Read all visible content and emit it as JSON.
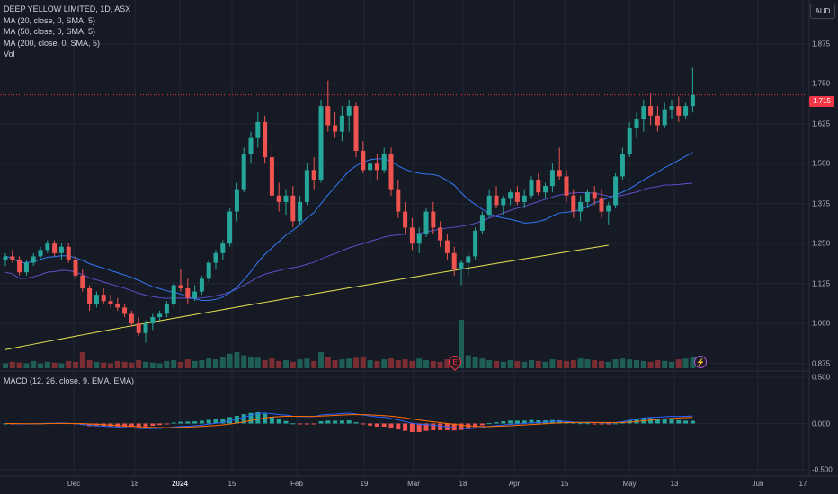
{
  "title": "DEEP YELLOW LIMITED, 1D, ASX",
  "currency": "AUD",
  "legend": {
    "ma20": "MA (20, close, 0, SMA, 5)",
    "ma50": "MA (50, close, 0, SMA, 5)",
    "ma200": "MA (200, close, 0, SMA, 5)",
    "vol": "Vol"
  },
  "macd_label": "MACD (12, 26, close, 9, EMA, EMA)",
  "last_price": "1.715",
  "event_icons": {
    "earnings": "E",
    "dividend": "⚡"
  },
  "colors": {
    "up": "#26a69a",
    "down": "#ef5350",
    "vol_up": "#1f5e57",
    "vol_down": "#7a2e33",
    "ma20": "#3179f5",
    "ma50": "#5b4fc9",
    "ma200": "#e8e454",
    "macd": "#2962ff",
    "signal": "#ff6d00",
    "background": "#161a25",
    "grid": "#232632"
  },
  "chart_data": {
    "type": "candlestick",
    "price_axis": {
      "ticks": [
        "1.875",
        "1.750",
        "1.625",
        "1.500",
        "1.375",
        "1.250",
        "1.125",
        "1.000",
        "0.875"
      ],
      "range": [
        0.86,
        1.95
      ]
    },
    "macd_axis": {
      "ticks": [
        "0.500",
        "0.000",
        "-0.500"
      ],
      "range": [
        -0.55,
        0.55
      ]
    },
    "time_axis": [
      {
        "label": "Dec",
        "bold": false
      },
      {
        "label": "18",
        "bold": false
      },
      {
        "label": "2024",
        "bold": true
      },
      {
        "label": "15",
        "bold": false
      },
      {
        "label": "Feb",
        "bold": false
      },
      {
        "label": "19",
        "bold": false
      },
      {
        "label": "Mar",
        "bold": false
      },
      {
        "label": "18",
        "bold": false
      },
      {
        "label": "Apr",
        "bold": false
      },
      {
        "label": "15",
        "bold": false
      },
      {
        "label": "May",
        "bold": false
      },
      {
        "label": "13",
        "bold": false
      },
      {
        "label": "Jun",
        "bold": false
      },
      {
        "label": "17",
        "bold": false
      }
    ],
    "ohlc": [
      [
        1.2,
        1.22,
        1.18,
        1.21
      ],
      [
        1.21,
        1.23,
        1.19,
        1.2
      ],
      [
        1.2,
        1.21,
        1.15,
        1.16
      ],
      [
        1.16,
        1.2,
        1.15,
        1.19
      ],
      [
        1.19,
        1.22,
        1.18,
        1.21
      ],
      [
        1.21,
        1.24,
        1.2,
        1.23
      ],
      [
        1.23,
        1.26,
        1.22,
        1.25
      ],
      [
        1.25,
        1.26,
        1.21,
        1.22
      ],
      [
        1.22,
        1.25,
        1.2,
        1.24
      ],
      [
        1.24,
        1.25,
        1.19,
        1.2
      ],
      [
        1.2,
        1.21,
        1.14,
        1.15
      ],
      [
        1.15,
        1.17,
        1.1,
        1.11
      ],
      [
        1.11,
        1.12,
        1.04,
        1.06
      ],
      [
        1.06,
        1.1,
        1.05,
        1.09
      ],
      [
        1.09,
        1.11,
        1.06,
        1.07
      ],
      [
        1.07,
        1.09,
        1.05,
        1.06
      ],
      [
        1.06,
        1.08,
        1.04,
        1.05
      ],
      [
        1.05,
        1.06,
        1.02,
        1.03
      ],
      [
        1.03,
        1.04,
        0.99,
        1.0
      ],
      [
        1.0,
        1.02,
        0.96,
        0.97
      ],
      [
        0.97,
        1.01,
        0.94,
        1.0
      ],
      [
        1.0,
        1.03,
        0.98,
        1.02
      ],
      [
        1.02,
        1.04,
        1.01,
        1.03
      ],
      [
        1.03,
        1.07,
        1.02,
        1.06
      ],
      [
        1.06,
        1.13,
        1.05,
        1.12
      ],
      [
        1.12,
        1.17,
        1.1,
        1.11
      ],
      [
        1.11,
        1.14,
        1.06,
        1.08
      ],
      [
        1.08,
        1.12,
        1.07,
        1.1
      ],
      [
        1.1,
        1.15,
        1.09,
        1.14
      ],
      [
        1.14,
        1.2,
        1.13,
        1.19
      ],
      [
        1.19,
        1.23,
        1.17,
        1.22
      ],
      [
        1.22,
        1.26,
        1.2,
        1.25
      ],
      [
        1.25,
        1.36,
        1.24,
        1.35
      ],
      [
        1.35,
        1.44,
        1.32,
        1.42
      ],
      [
        1.42,
        1.55,
        1.41,
        1.53
      ],
      [
        1.53,
        1.6,
        1.5,
        1.58
      ],
      [
        1.58,
        1.66,
        1.55,
        1.63
      ],
      [
        1.63,
        1.65,
        1.5,
        1.52
      ],
      [
        1.52,
        1.56,
        1.38,
        1.4
      ],
      [
        1.4,
        1.44,
        1.35,
        1.38
      ],
      [
        1.38,
        1.42,
        1.34,
        1.4
      ],
      [
        1.4,
        1.43,
        1.3,
        1.32
      ],
      [
        1.32,
        1.4,
        1.31,
        1.38
      ],
      [
        1.38,
        1.5,
        1.37,
        1.48
      ],
      [
        1.48,
        1.52,
        1.42,
        1.45
      ],
      [
        1.45,
        1.7,
        1.44,
        1.68
      ],
      [
        1.68,
        1.76,
        1.6,
        1.62
      ],
      [
        1.62,
        1.66,
        1.58,
        1.6
      ],
      [
        1.6,
        1.68,
        1.57,
        1.65
      ],
      [
        1.65,
        1.7,
        1.6,
        1.68
      ],
      [
        1.68,
        1.69,
        1.52,
        1.54
      ],
      [
        1.54,
        1.57,
        1.47,
        1.48
      ],
      [
        1.48,
        1.52,
        1.44,
        1.5
      ],
      [
        1.5,
        1.53,
        1.45,
        1.48
      ],
      [
        1.48,
        1.55,
        1.47,
        1.53
      ],
      [
        1.53,
        1.55,
        1.4,
        1.42
      ],
      [
        1.42,
        1.45,
        1.33,
        1.35
      ],
      [
        1.35,
        1.38,
        1.28,
        1.3
      ],
      [
        1.3,
        1.33,
        1.23,
        1.25
      ],
      [
        1.25,
        1.3,
        1.22,
        1.28
      ],
      [
        1.28,
        1.36,
        1.27,
        1.35
      ],
      [
        1.35,
        1.38,
        1.28,
        1.3
      ],
      [
        1.3,
        1.32,
        1.24,
        1.26
      ],
      [
        1.26,
        1.28,
        1.2,
        1.22
      ],
      [
        1.22,
        1.24,
        1.15,
        1.17
      ],
      [
        1.17,
        1.2,
        1.12,
        1.19
      ],
      [
        1.19,
        1.22,
        1.15,
        1.21
      ],
      [
        1.21,
        1.3,
        1.2,
        1.29
      ],
      [
        1.29,
        1.35,
        1.28,
        1.34
      ],
      [
        1.34,
        1.42,
        1.33,
        1.4
      ],
      [
        1.4,
        1.43,
        1.36,
        1.37
      ],
      [
        1.37,
        1.4,
        1.34,
        1.39
      ],
      [
        1.39,
        1.42,
        1.37,
        1.41
      ],
      [
        1.41,
        1.43,
        1.37,
        1.38
      ],
      [
        1.38,
        1.42,
        1.36,
        1.4
      ],
      [
        1.4,
        1.46,
        1.39,
        1.45
      ],
      [
        1.45,
        1.47,
        1.4,
        1.41
      ],
      [
        1.41,
        1.44,
        1.39,
        1.43
      ],
      [
        1.43,
        1.5,
        1.41,
        1.48
      ],
      [
        1.48,
        1.55,
        1.45,
        1.46
      ],
      [
        1.46,
        1.48,
        1.38,
        1.4
      ],
      [
        1.4,
        1.42,
        1.33,
        1.35
      ],
      [
        1.35,
        1.4,
        1.32,
        1.38
      ],
      [
        1.38,
        1.42,
        1.36,
        1.41
      ],
      [
        1.41,
        1.43,
        1.37,
        1.39
      ],
      [
        1.39,
        1.42,
        1.33,
        1.35
      ],
      [
        1.35,
        1.38,
        1.31,
        1.37
      ],
      [
        1.37,
        1.47,
        1.36,
        1.46
      ],
      [
        1.46,
        1.55,
        1.45,
        1.53
      ],
      [
        1.53,
        1.63,
        1.52,
        1.61
      ],
      [
        1.61,
        1.66,
        1.58,
        1.64
      ],
      [
        1.64,
        1.7,
        1.6,
        1.68
      ],
      [
        1.68,
        1.72,
        1.62,
        1.65
      ],
      [
        1.65,
        1.68,
        1.6,
        1.62
      ],
      [
        1.62,
        1.69,
        1.61,
        1.67
      ],
      [
        1.67,
        1.7,
        1.64,
        1.68
      ],
      [
        1.68,
        1.71,
        1.63,
        1.65
      ],
      [
        1.65,
        1.69,
        1.64,
        1.68
      ],
      [
        1.68,
        1.8,
        1.66,
        1.715
      ]
    ],
    "volume_relative": [
      0.3,
      0.4,
      0.35,
      0.3,
      0.45,
      0.3,
      0.4,
      0.35,
      0.3,
      0.45,
      0.4,
      1.0,
      0.5,
      0.4,
      0.35,
      0.3,
      0.45,
      0.4,
      0.35,
      0.5,
      0.4,
      0.35,
      0.3,
      0.45,
      0.5,
      0.4,
      0.55,
      0.45,
      0.5,
      0.6,
      0.55,
      0.7,
      0.9,
      1.0,
      0.8,
      0.7,
      0.65,
      0.5,
      0.6,
      0.45,
      0.5,
      0.4,
      0.55,
      0.6,
      0.45,
      1.0,
      0.7,
      0.5,
      0.55,
      0.6,
      0.65,
      0.7,
      0.5,
      0.45,
      0.55,
      0.6,
      0.5,
      0.55,
      0.45,
      0.6,
      0.5,
      0.45,
      0.4,
      0.55,
      0.6,
      3.0,
      0.8,
      0.7,
      0.6,
      0.5,
      0.45,
      0.4,
      0.5,
      0.45,
      0.4,
      0.5,
      0.45,
      0.4,
      0.55,
      0.5,
      0.45,
      0.5,
      0.6,
      0.55,
      0.5,
      0.45,
      0.4,
      0.55,
      0.6,
      0.55,
      0.5,
      0.45,
      0.4,
      0.5,
      0.45,
      0.4,
      0.55,
      0.6,
      0.7
    ],
    "series": [
      {
        "name": "MA (20, close, 0, SMA, 5)",
        "color": "#3179f5"
      },
      {
        "name": "MA (50, close, 0, SMA, 5)",
        "color": "#5b4fc9"
      },
      {
        "name": "MA (200, close, 0, SMA, 5)",
        "color": "#e8e454"
      }
    ],
    "ma200_start": 0.86,
    "ma200_end": 1.245
  }
}
